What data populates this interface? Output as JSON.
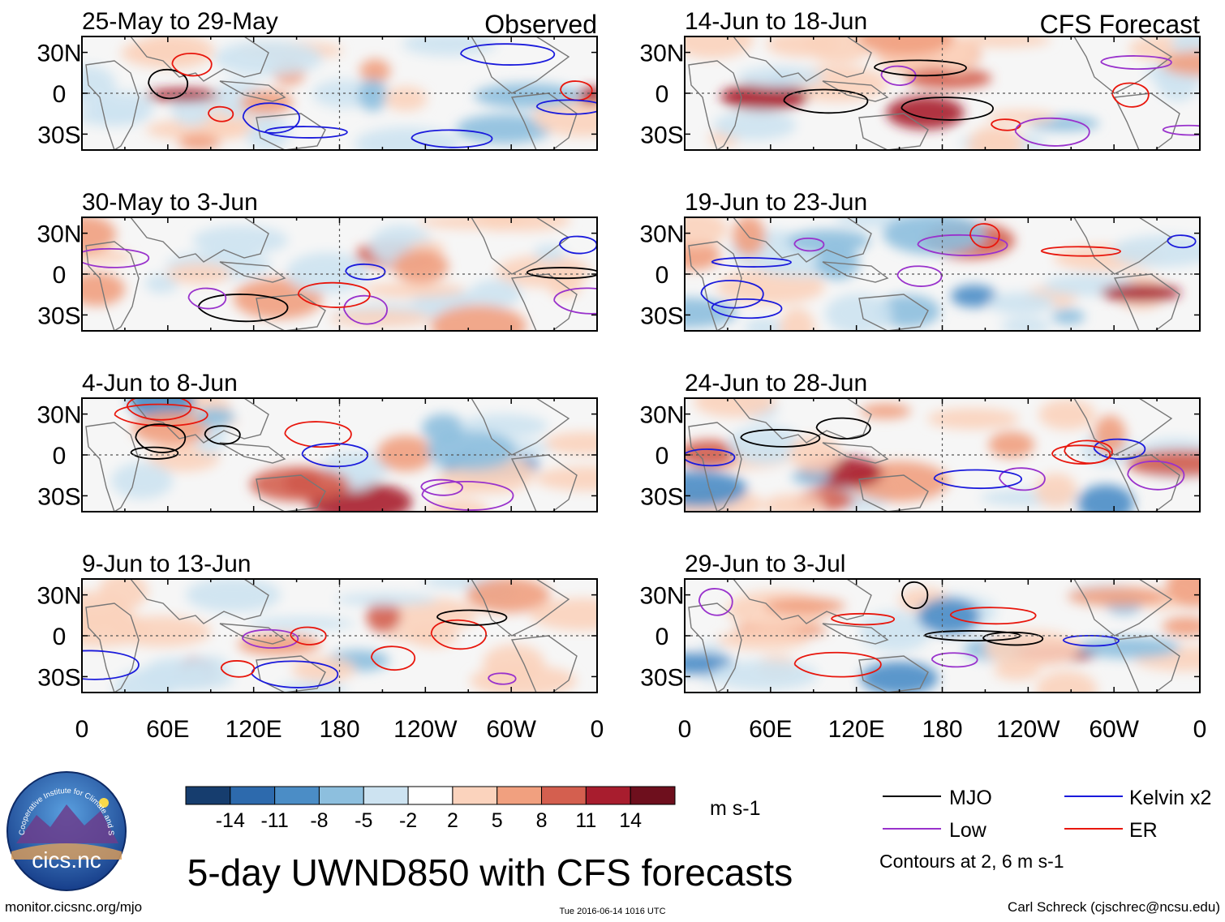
{
  "title": "5-day UWND850 with CFS forecasts",
  "observed_label": "Observed",
  "forecast_label": "CFS Forecast",
  "lat_labels": [
    "30N",
    "0",
    "30S"
  ],
  "lon_labels": [
    "0",
    "60E",
    "120E",
    "180",
    "120W",
    "60W",
    "0"
  ],
  "panels_left": [
    {
      "period": "25-May to 29-May"
    },
    {
      "period": "30-May to 3-Jun"
    },
    {
      "period": "4-Jun to 8-Jun"
    },
    {
      "period": "9-Jun to 13-Jun"
    }
  ],
  "panels_right": [
    {
      "period": "14-Jun to 18-Jun"
    },
    {
      "period": "19-Jun to 23-Jun"
    },
    {
      "period": "24-Jun to 28-Jun"
    },
    {
      "period": "29-Jun to 3-Jul"
    }
  ],
  "colorbar": {
    "ticks": [
      "-14",
      "-11",
      "-8",
      "-5",
      "-2",
      "2",
      "5",
      "8",
      "11",
      "14"
    ],
    "colors": [
      "#163d6e",
      "#2d6aad",
      "#4b8dc6",
      "#8dbfde",
      "#cde3f1",
      "#ffffff",
      "#fbd3bd",
      "#f1a07f",
      "#d45f4f",
      "#a81d2e",
      "#6e0f1d"
    ],
    "units": "m s-1"
  },
  "legend": {
    "items": [
      {
        "label": "MJO",
        "color": "#000000"
      },
      {
        "label": "Kelvin x2",
        "color": "#1a1adc"
      },
      {
        "label": "Low",
        "color": "#9932cc"
      },
      {
        "label": "ER",
        "color": "#e8160c"
      }
    ],
    "note": "Contours at 2, 6 m s-1"
  },
  "logo": {
    "text": "cics.nc",
    "ring_text": "Cooperative Institute for Climate and Satellites"
  },
  "footer": {
    "url": "monitor.cicsnc.org/mjo",
    "timestamp": "Tue 2016-06-14 1016 UTC",
    "author": "Carl Schreck (cjschrec@ncsu.edu)"
  }
}
